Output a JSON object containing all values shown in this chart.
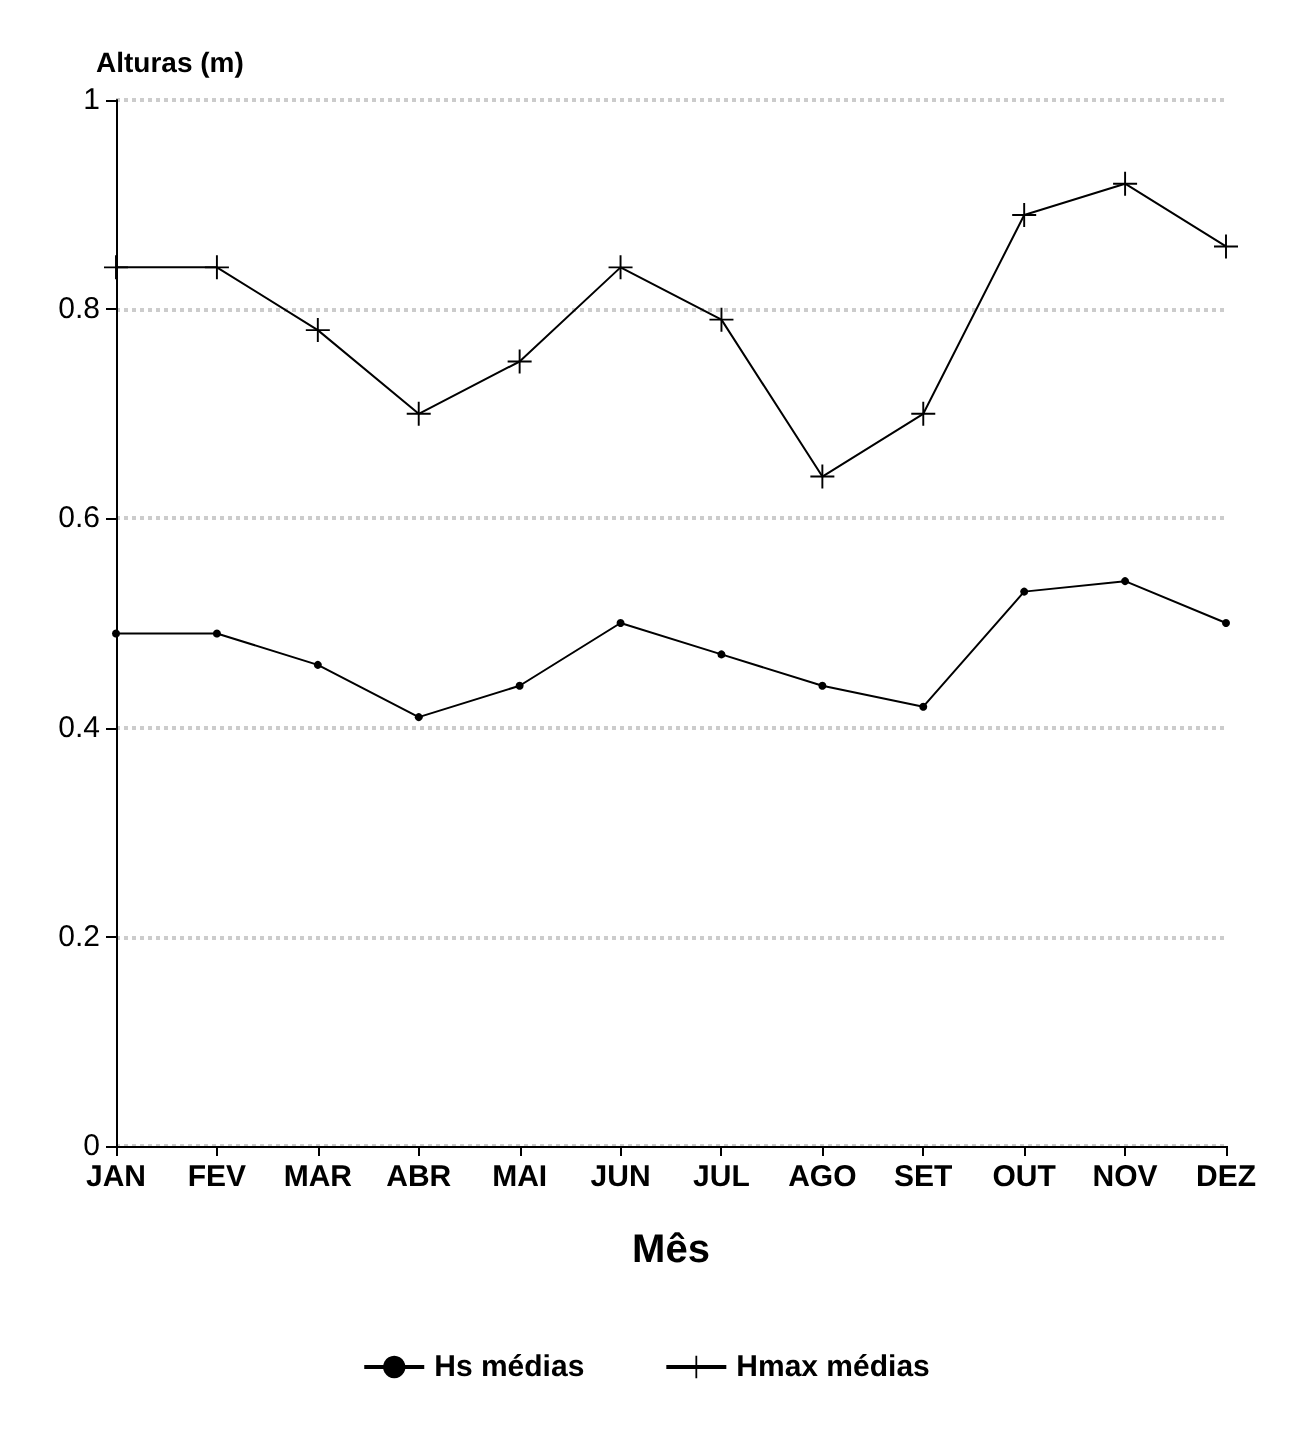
{
  "chart_data": {
    "type": "line",
    "ylabel": "Alturas (m)",
    "xlabel": "Mês",
    "categories": [
      "JAN",
      "FEV",
      "MAR",
      "ABR",
      "MAI",
      "JUN",
      "JUL",
      "AGO",
      "SET",
      "OUT",
      "NOV",
      "DEZ"
    ],
    "series": [
      {
        "name": "Hs médias",
        "color": "#000000",
        "marker": "circle",
        "values": [
          0.49,
          0.49,
          0.46,
          0.41,
          0.44,
          0.5,
          0.47,
          0.44,
          0.42,
          0.53,
          0.54,
          0.5
        ]
      },
      {
        "name": "Hmax médias",
        "color": "#000000",
        "marker": "cross",
        "values": [
          0.84,
          0.84,
          0.78,
          0.7,
          0.75,
          0.84,
          0.79,
          0.64,
          0.7,
          0.89,
          0.92,
          0.86
        ]
      }
    ],
    "ylim": [
      0,
      1
    ],
    "yticks": [
      0,
      0.2,
      0.4,
      0.6,
      0.8,
      1
    ],
    "grid": "y",
    "legend": "bottom",
    "line_style": "solid"
  }
}
